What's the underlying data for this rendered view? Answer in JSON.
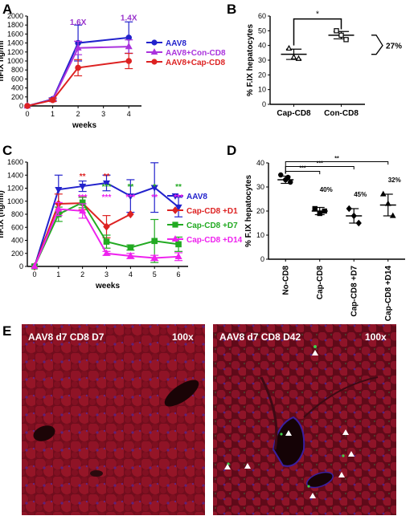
{
  "panels": [
    "A",
    "B",
    "C",
    "D",
    "E"
  ],
  "chart_data": [
    {
      "id": "A",
      "type": "line",
      "xlabel": "weeks",
      "ylabel": "hFIX ng/ml",
      "xlim": [
        0,
        4.5
      ],
      "ylim": [
        0,
        2000
      ],
      "xticks": [
        0,
        1,
        2,
        3,
        4
      ],
      "yticks": [
        0,
        200,
        400,
        600,
        800,
        1000,
        1200,
        1400,
        1600,
        1800,
        2000
      ],
      "legend_position": "right",
      "series": [
        {
          "name": "AAV8",
          "color": "#2222cc",
          "marker": "circle",
          "x": [
            0,
            1,
            2,
            4
          ],
          "y": [
            0,
            150,
            1400,
            1520
          ],
          "err": [
            0,
            30,
            400,
            350
          ]
        },
        {
          "name": "AAV8+Con-CD8",
          "color": "#aa33dd",
          "marker": "triangle",
          "x": [
            0,
            1,
            2,
            4
          ],
          "y": [
            0,
            140,
            1290,
            1320
          ],
          "err": [
            0,
            30,
            150,
            150
          ]
        },
        {
          "name": "AAV8+Cap-CD8",
          "color": "#dd2222",
          "marker": "circle",
          "x": [
            0,
            1,
            2,
            4
          ],
          "y": [
            0,
            130,
            850,
            1000
          ],
          "err": [
            0,
            30,
            180,
            170
          ]
        }
      ],
      "annotations": [
        {
          "text": "1.6X",
          "x": 2,
          "y": 1800,
          "color": "#9933cc"
        },
        {
          "text": "1.4X",
          "x": 4,
          "y": 1900,
          "color": "#9933cc"
        }
      ]
    },
    {
      "id": "B",
      "type": "scatter",
      "xlabel": "",
      "ylabel": "% F.IX hepatocytes",
      "ylim": [
        0,
        60
      ],
      "yticks": [
        0,
        10,
        20,
        30,
        40,
        50,
        60
      ],
      "categories": [
        "Cap-CD8",
        "Con-CD8"
      ],
      "groups": [
        {
          "category": "Cap-CD8",
          "marker": "triangle",
          "mean": 34,
          "sd": 3.5,
          "points": [
            38,
            32,
            31
          ]
        },
        {
          "category": "Con-CD8",
          "marker": "square",
          "mean": 47,
          "sd": 2.5,
          "points": [
            50,
            47,
            44
          ]
        }
      ],
      "significance": "*",
      "bracket_label": "27%"
    },
    {
      "id": "C",
      "type": "line",
      "xlabel": "weeks",
      "ylabel": "hF.IX (ng/ml)",
      "xlim": [
        -0.3,
        6.4
      ],
      "ylim": [
        0,
        1600
      ],
      "xticks": [
        0,
        1,
        2,
        3,
        4,
        5,
        6
      ],
      "yticks": [
        0,
        200,
        400,
        600,
        800,
        1000,
        1200,
        1400,
        1600
      ],
      "legend_position": "right",
      "series": [
        {
          "name": "AAV8",
          "color": "#2222cc",
          "marker": "triangle-down",
          "x": [
            0,
            1,
            2,
            3,
            4,
            5,
            6
          ],
          "y": [
            0,
            1180,
            1230,
            1280,
            1080,
            1210,
            910
          ],
          "err": [
            0,
            220,
            80,
            120,
            250,
            380,
            150
          ]
        },
        {
          "name": "Cap-CD8 +D1",
          "color": "#dd2222",
          "marker": "diamond",
          "x": [
            0,
            1,
            2,
            3,
            4
          ],
          "y": [
            0,
            960,
            970,
            610,
            800
          ],
          "err": [
            0,
            150,
            100,
            170,
            0
          ]
        },
        {
          "name": "Cap-CD8 +D7",
          "color": "#22aa22",
          "marker": "square",
          "x": [
            0,
            1,
            2,
            3,
            4,
            5,
            6
          ],
          "y": [
            0,
            800,
            980,
            380,
            290,
            390,
            340
          ],
          "err": [
            0,
            110,
            80,
            100,
            40,
            330,
            110
          ]
        },
        {
          "name": "Cap-CD8 +D14",
          "color": "#ee22ee",
          "marker": "triangle",
          "x": [
            0,
            1,
            2,
            3,
            4,
            5,
            6
          ],
          "y": [
            0,
            880,
            850,
            200,
            160,
            130,
            150
          ],
          "err": [
            0,
            100,
            110,
            30,
            40,
            40,
            60
          ]
        }
      ],
      "sig_rows": [
        {
          "color": "#dd2222",
          "marks": [
            {
              "x": 2,
              "t": "**"
            },
            {
              "x": 3,
              "t": "**"
            }
          ]
        },
        {
          "color": "#22aa22",
          "marks": [
            {
              "x": 3,
              "t": "***"
            },
            {
              "x": 4,
              "t": "**"
            },
            {
              "x": 5,
              "t": "*"
            },
            {
              "x": 6,
              "t": "**"
            }
          ]
        },
        {
          "color": "#ee22ee",
          "marks": [
            {
              "x": 2,
              "t": "***"
            },
            {
              "x": 3,
              "t": "***"
            },
            {
              "x": 4,
              "t": "***"
            },
            {
              "x": 5,
              "t": "**"
            },
            {
              "x": 6,
              "t": "***"
            }
          ]
        }
      ]
    },
    {
      "id": "D",
      "type": "scatter",
      "xlabel": "",
      "ylabel": "% F.IX hepatocytes",
      "ylim": [
        0,
        40
      ],
      "yticks": [
        0,
        10,
        20,
        30,
        40
      ],
      "categories": [
        "No-CD8",
        "Cap-CD8",
        "Cap-CD8 +D7",
        "Cap-CD8 +D14"
      ],
      "groups": [
        {
          "category": "No-CD8",
          "marker": "circle",
          "mean": 33,
          "sd": 1.5,
          "points": [
            35,
            33,
            32,
            34
          ]
        },
        {
          "category": "Cap-CD8",
          "marker": "square",
          "mean": 20,
          "sd": 1.5,
          "points": [
            21,
            19,
            20
          ]
        },
        {
          "category": "Cap-CD8 +D7",
          "marker": "diamond",
          "mean": 18,
          "sd": 3,
          "points": [
            21,
            18,
            15
          ]
        },
        {
          "category": "Cap-CD8 +D14",
          "marker": "triangle",
          "mean": 22.5,
          "sd": 4.5,
          "points": [
            27,
            23,
            18
          ]
        }
      ],
      "brackets": [
        {
          "to": "Cap-CD8",
          "stars": "***"
        },
        {
          "to": "Cap-CD8 +D7",
          "stars": "***"
        },
        {
          "to": "Cap-CD8 +D14",
          "stars": "**"
        }
      ],
      "group_labels": [
        "",
        "40%",
        "45%",
        "32%"
      ]
    }
  ],
  "micrographs": [
    {
      "title": "AAV8 d7 CD8 D7",
      "mag": "100x",
      "arrows": 0
    },
    {
      "title": "AAV8 d7 CD8 D42",
      "mag": "100x",
      "arrows": 8
    }
  ]
}
